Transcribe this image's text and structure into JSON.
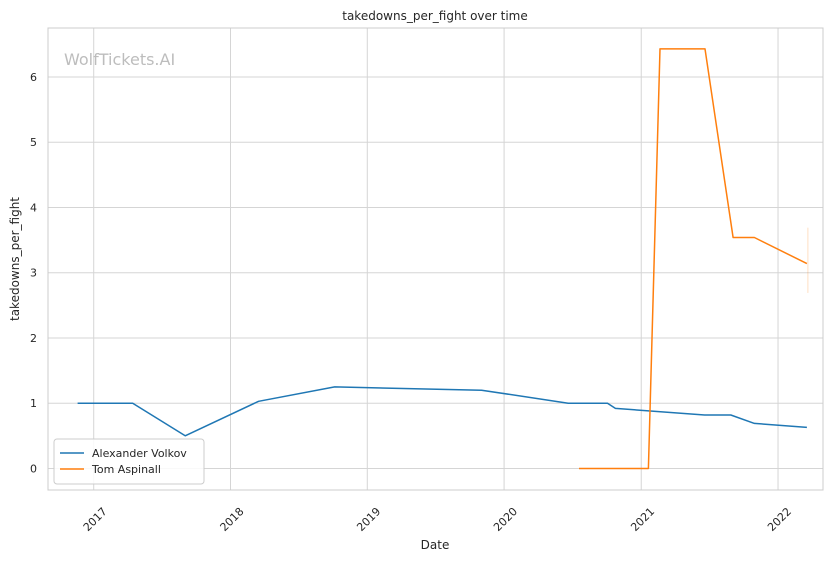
{
  "chart_data": {
    "type": "line",
    "title": "takedowns_per_fight over time",
    "xlabel": "Date",
    "ylabel": "takedowns_per_fight",
    "watermark": "WolfTickets.AI",
    "xlim": [
      "2016-09-01",
      "2022-05-01"
    ],
    "ylim": [
      -0.33,
      6.75
    ],
    "x_ticks": [
      "2017",
      "2018",
      "2019",
      "2020",
      "2021",
      "2022"
    ],
    "y_ticks": [
      "0",
      "1",
      "2",
      "3",
      "4",
      "5",
      "6"
    ],
    "grid": true,
    "legend_position": "lower-left",
    "series": [
      {
        "name": "Alexander Volkov",
        "color": "#1f77b4",
        "points": [
          [
            "2016-11-19",
            1.0
          ],
          [
            "2017-04-15",
            1.0
          ],
          [
            "2017-09-02",
            0.5
          ],
          [
            "2018-03-17",
            1.03
          ],
          [
            "2018-10-06",
            1.25
          ],
          [
            "2019-11-02",
            1.2
          ],
          [
            "2020-06-20",
            1.0
          ],
          [
            "2020-10-03",
            1.0
          ],
          [
            "2020-10-24",
            0.92
          ],
          [
            "2021-06-19",
            0.82
          ],
          [
            "2021-08-28",
            0.82
          ],
          [
            "2021-10-30",
            0.69
          ],
          [
            "2022-03-19",
            0.63
          ]
        ]
      },
      {
        "name": "Tom Aspinall",
        "color": "#ff7f0e",
        "points": [
          [
            "2020-07-19",
            0.0
          ],
          [
            "2021-01-20",
            0.0
          ],
          [
            "2021-02-20",
            6.43
          ],
          [
            "2021-06-20",
            6.43
          ],
          [
            "2021-09-03",
            3.54
          ],
          [
            "2021-10-30",
            3.54
          ],
          [
            "2022-03-19",
            3.14
          ]
        ]
      }
    ]
  }
}
